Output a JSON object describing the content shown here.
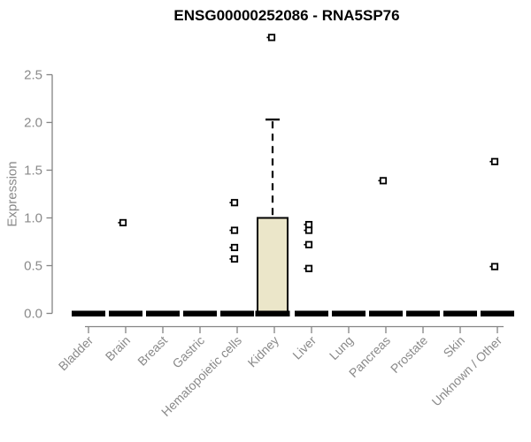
{
  "title": "ENSG00000252086 - RNA5SP76",
  "chart_data": {
    "type": "boxplot",
    "title": "ENSG00000252086 - RNA5SP76",
    "xlabel": "",
    "ylabel": "Expression",
    "ylim": [
      0,
      2.5
    ],
    "yticks": [
      "0.0",
      "0.5",
      "1.0",
      "1.5",
      "2.0",
      "2.5"
    ],
    "grid": false,
    "legend": "none",
    "categories": [
      "Bladder",
      "Brain",
      "Breast",
      "Gastric",
      "Hematopoietic cells",
      "Kidney",
      "Liver",
      "Lung",
      "Pancreas",
      "Prostate",
      "Skin",
      "Unknown / Other"
    ],
    "series": [
      {
        "category": "Bladder",
        "q1": 0,
        "median": 0,
        "q3": 0,
        "whisker_low": 0,
        "whisker_high": 0,
        "outliers": []
      },
      {
        "category": "Brain",
        "q1": 0,
        "median": 0,
        "q3": 0,
        "whisker_low": 0,
        "whisker_high": 0,
        "outliers": [
          0.95
        ]
      },
      {
        "category": "Breast",
        "q1": 0,
        "median": 0,
        "q3": 0,
        "whisker_low": 0,
        "whisker_high": 0,
        "outliers": []
      },
      {
        "category": "Gastric",
        "q1": 0,
        "median": 0,
        "q3": 0,
        "whisker_low": 0,
        "whisker_high": 0,
        "outliers": []
      },
      {
        "category": "Hematopoietic cells",
        "q1": 0,
        "median": 0,
        "q3": 0,
        "whisker_low": 0,
        "whisker_high": 0,
        "outliers": [
          1.16,
          0.87,
          0.69,
          0.57
        ]
      },
      {
        "category": "Kidney",
        "q1": 0,
        "median": 0,
        "q3": 1.0,
        "whisker_low": 0,
        "whisker_high": 2.03,
        "outliers": [
          2.89
        ]
      },
      {
        "category": "Liver",
        "q1": 0,
        "median": 0,
        "q3": 0,
        "whisker_low": 0,
        "whisker_high": 0,
        "outliers": [
          0.93,
          0.87,
          0.72,
          0.47
        ]
      },
      {
        "category": "Lung",
        "q1": 0,
        "median": 0,
        "q3": 0,
        "whisker_low": 0,
        "whisker_high": 0,
        "outliers": []
      },
      {
        "category": "Pancreas",
        "q1": 0,
        "median": 0,
        "q3": 0,
        "whisker_low": 0,
        "whisker_high": 0,
        "outliers": [
          1.39
        ]
      },
      {
        "category": "Prostate",
        "q1": 0,
        "median": 0,
        "q3": 0,
        "whisker_low": 0,
        "whisker_high": 0,
        "outliers": []
      },
      {
        "category": "Skin",
        "q1": 0,
        "median": 0,
        "q3": 0,
        "whisker_low": 0,
        "whisker_high": 0,
        "outliers": []
      },
      {
        "category": "Unknown / Other",
        "q1": 0,
        "median": 0,
        "q3": 0,
        "whisker_low": 0,
        "whisker_high": 0,
        "outliers": [
          1.59,
          0.49
        ]
      }
    ],
    "colors": {
      "box_fill": "#ebe6c9",
      "box_stroke": "#000000",
      "median": "#000000",
      "outlier": "#000000",
      "axis": "#848484",
      "tick_label": "#8a8a8a",
      "title": "#000000"
    }
  }
}
